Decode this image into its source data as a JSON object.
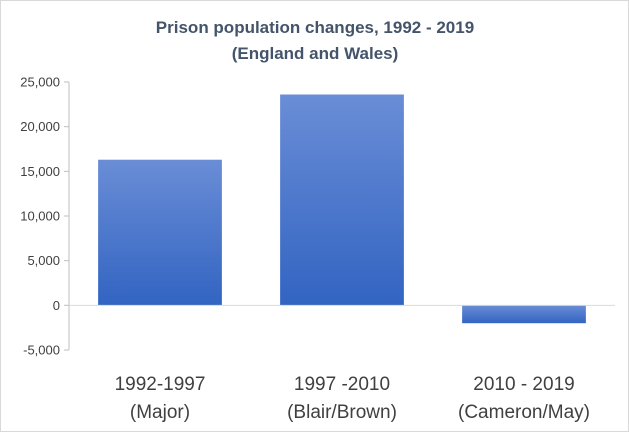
{
  "chart_data": {
    "type": "bar",
    "title": "Prison population  changes, 1992 - 2019",
    "subtitle": "(England and Wales)",
    "categories": [
      [
        "1992-1997",
        "(Major)"
      ],
      [
        "1997 -2010",
        "(Blair/Brown)"
      ],
      [
        "2010 - 2019",
        "(Cameron/May)"
      ]
    ],
    "values": [
      16300,
      23600,
      -2000
    ],
    "ylim": [
      -5000,
      25000
    ],
    "yticks": [
      {
        "value": 25000,
        "label": "25,000"
      },
      {
        "value": 20000,
        "label": "20,000"
      },
      {
        "value": 15000,
        "label": "15,000"
      },
      {
        "value": 10000,
        "label": "10,000"
      },
      {
        "value": 5000,
        "label": "5,000"
      },
      {
        "value": 0,
        "label": "0"
      },
      {
        "value": -5000,
        "label": "-5,000"
      }
    ],
    "xlabel": "",
    "ylabel": "",
    "grid": false,
    "legend": "none",
    "colors": {
      "bar_top": "#6a8dd6",
      "bar_bottom": "#3264c2",
      "axis": "#bfbfbf",
      "text": "#404040",
      "title": "#44546a"
    }
  }
}
